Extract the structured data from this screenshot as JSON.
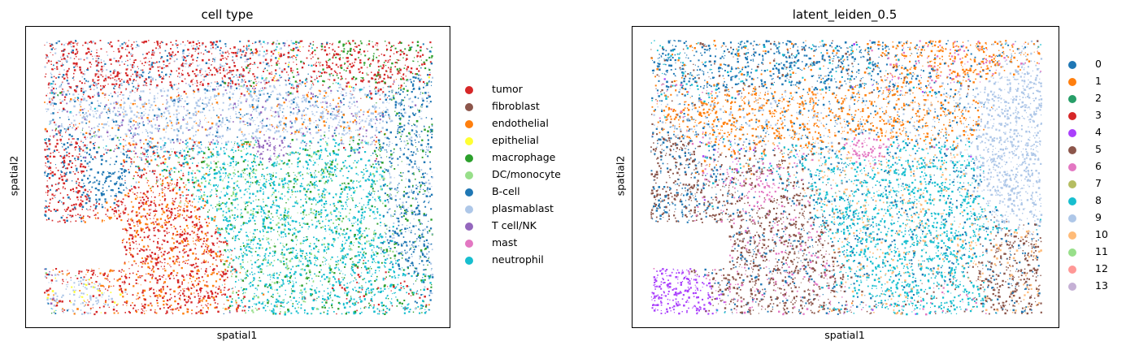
{
  "chart_data": [
    {
      "type": "scatter",
      "title": "cell type",
      "xlabel": "spatial1",
      "ylabel": "spatial2",
      "legend_position": "right",
      "grid": false,
      "categories": [
        {
          "name": "tumor",
          "color": "#d62728"
        },
        {
          "name": "fibroblast",
          "color": "#8c564b"
        },
        {
          "name": "endothelial",
          "color": "#ff7f0e"
        },
        {
          "name": "epithelial",
          "color": "#ffff33"
        },
        {
          "name": "macrophage",
          "color": "#2ca02c"
        },
        {
          "name": "DC/monocyte",
          "color": "#98df8a"
        },
        {
          "name": "B-cell",
          "color": "#1f77b4"
        },
        {
          "name": "plasmablast",
          "color": "#aec7e8"
        },
        {
          "name": "T cell/NK",
          "color": "#9467bd"
        },
        {
          "name": "mast",
          "color": "#e377c2"
        },
        {
          "name": "neutrophil",
          "color": "#17becf"
        }
      ]
    },
    {
      "type": "scatter",
      "title": "latent_leiden_0.5",
      "xlabel": "spatial1",
      "ylabel": "spatial2",
      "legend_position": "right",
      "grid": false,
      "categories": [
        {
          "name": "0",
          "color": "#1f77b4"
        },
        {
          "name": "1",
          "color": "#ff7f0e"
        },
        {
          "name": "2",
          "color": "#279e68"
        },
        {
          "name": "3",
          "color": "#d62728"
        },
        {
          "name": "4",
          "color": "#aa40fc"
        },
        {
          "name": "5",
          "color": "#8c564b"
        },
        {
          "name": "6",
          "color": "#e377c2"
        },
        {
          "name": "7",
          "color": "#b5bd61"
        },
        {
          "name": "8",
          "color": "#17becf"
        },
        {
          "name": "9",
          "color": "#aec7e8"
        },
        {
          "name": "10",
          "color": "#ffbb78"
        },
        {
          "name": "11",
          "color": "#98df8a"
        },
        {
          "name": "12",
          "color": "#ff9896"
        },
        {
          "name": "13",
          "color": "#c5b0d5"
        }
      ]
    }
  ]
}
